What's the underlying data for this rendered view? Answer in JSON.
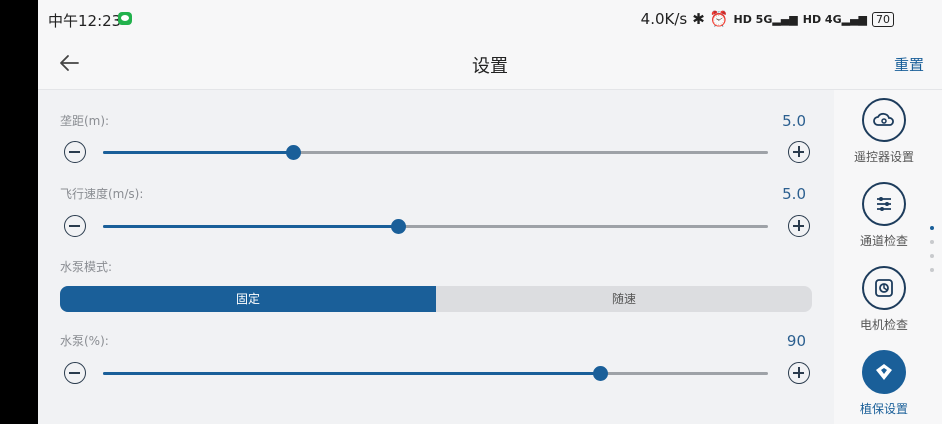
{
  "status": {
    "time": "中午12:23",
    "speed": "4.0K/s",
    "net1": "5G",
    "net2": "4G",
    "battery": "70"
  },
  "appbar": {
    "title": "设置",
    "reset_label": "重置"
  },
  "settings": {
    "spacing": {
      "label": "垄距(m):",
      "value": "5.0",
      "fraction": 0.286
    },
    "speed": {
      "label": "飞行速度(m/s):",
      "value": "5.0",
      "fraction": 0.444
    },
    "pump_mode": {
      "label": "水泵模式:",
      "options": [
        "固定",
        "随速"
      ],
      "selected": "固定"
    },
    "pump": {
      "label": "水泵(%):",
      "value": "90",
      "fraction": 0.748
    }
  },
  "sidebar": {
    "items": [
      {
        "label": "遥控器设置",
        "icon": "remote-cloud-icon"
      },
      {
        "label": "通道检查",
        "icon": "channel-sliders-icon"
      },
      {
        "label": "电机检查",
        "icon": "motor-fan-icon"
      },
      {
        "label": "植保设置",
        "icon": "plant-protection-icon",
        "active": true
      }
    ]
  },
  "colors": {
    "accent": "#1a5f99",
    "track": "#9ea2a7",
    "background": "#f1f2f4"
  }
}
